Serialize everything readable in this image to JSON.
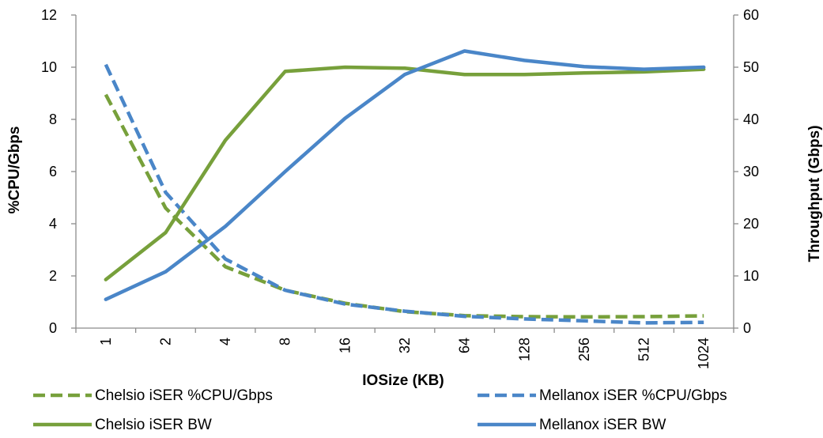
{
  "chart_data": {
    "type": "line",
    "categories": [
      "1",
      "2",
      "4",
      "8",
      "16",
      "32",
      "64",
      "128",
      "256",
      "512",
      "1024"
    ],
    "xlabel": "IOSize (KB)",
    "ylabel_left": "%CPU/Gbps",
    "ylabel_right": "Throughput (Gbps)",
    "ylim_left": [
      0,
      12
    ],
    "yticks_left": [
      "0",
      "2",
      "4",
      "6",
      "8",
      "10",
      "12"
    ],
    "ylim_right": [
      0,
      60
    ],
    "yticks_right": [
      "0",
      "10",
      "20",
      "30",
      "40",
      "50",
      "60"
    ],
    "grid": false,
    "legend_position": "bottom",
    "series": [
      {
        "name": "Chelsio iSER %CPU/Gbps",
        "axis": "left",
        "style": "dashed",
        "color": "#77a03b",
        "values": [
          8.95,
          4.6,
          2.35,
          1.45,
          0.95,
          0.63,
          0.48,
          0.44,
          0.43,
          0.44,
          0.47
        ]
      },
      {
        "name": "Mellanox iSER %CPU/Gbps",
        "axis": "left",
        "style": "dashed",
        "color": "#4a86c8",
        "values": [
          10.1,
          5.2,
          2.65,
          1.45,
          0.92,
          0.65,
          0.45,
          0.35,
          0.28,
          0.2,
          0.22
        ]
      },
      {
        "name": "Chelsio iSER BW",
        "axis": "right",
        "style": "solid",
        "color": "#77a03b",
        "values": [
          9.3,
          18.3,
          36,
          49.2,
          50,
          49.8,
          48.6,
          48.6,
          48.9,
          49.1,
          49.6
        ]
      },
      {
        "name": "Mellanox iSER BW",
        "axis": "right",
        "style": "solid",
        "color": "#4a86c8",
        "values": [
          5.5,
          10.8,
          19.5,
          30,
          40.2,
          48.6,
          53.1,
          51.3,
          50.1,
          49.6,
          50
        ]
      }
    ]
  }
}
